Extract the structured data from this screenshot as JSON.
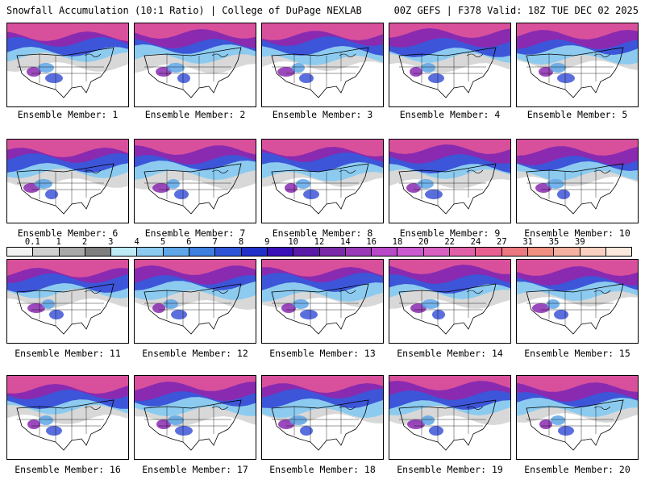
{
  "header": {
    "left": "Snowfall Accumulation (10:1 Ratio) | College of DuPage NEXLAB",
    "right": "00Z GEFS | F378 Valid: 18Z TUE DEC 02 2025"
  },
  "panels": [
    {
      "label": "Ensemble Member: 1"
    },
    {
      "label": "Ensemble Member: 2"
    },
    {
      "label": "Ensemble Member: 3"
    },
    {
      "label": "Ensemble Member: 4"
    },
    {
      "label": "Ensemble Member: 5"
    },
    {
      "label": "Ensemble Member: 6"
    },
    {
      "label": "Ensemble Member: 7"
    },
    {
      "label": "Ensemble Member: 8"
    },
    {
      "label": "Ensemble Member: 9"
    },
    {
      "label": "Ensemble Member: 10"
    },
    {
      "label": "Ensemble Member: 11"
    },
    {
      "label": "Ensemble Member: 12"
    },
    {
      "label": "Ensemble Member: 13"
    },
    {
      "label": "Ensemble Member: 14"
    },
    {
      "label": "Ensemble Member: 15"
    },
    {
      "label": "Ensemble Member: 16"
    },
    {
      "label": "Ensemble Member: 17"
    },
    {
      "label": "Ensemble Member: 18"
    },
    {
      "label": "Ensemble Member: 19"
    },
    {
      "label": "Ensemble Member: 20"
    }
  ],
  "colorbar": {
    "ticks": [
      "0.1",
      "1",
      "2",
      "3",
      "4",
      "5",
      "6",
      "7",
      "8",
      "9",
      "10",
      "12",
      "14",
      "16",
      "18",
      "20",
      "22",
      "24",
      "27",
      "31",
      "35",
      "39"
    ],
    "colors": [
      "#f2f2f2",
      "#d0d0d0",
      "#a8a8a8",
      "#7f7f7f",
      "#bdeaf5",
      "#8ccbef",
      "#5ea6e6",
      "#3d7fde",
      "#2e55d8",
      "#2030c8",
      "#3a10b8",
      "#5a1aa8",
      "#7a2aa8",
      "#9a3ab8",
      "#b84ac8",
      "#cc5ad0",
      "#d860c0",
      "#e060a8",
      "#e86090",
      "#ec7880",
      "#f09080",
      "#f4b0a0",
      "#f8d0c0",
      "#fce8dc"
    ]
  }
}
